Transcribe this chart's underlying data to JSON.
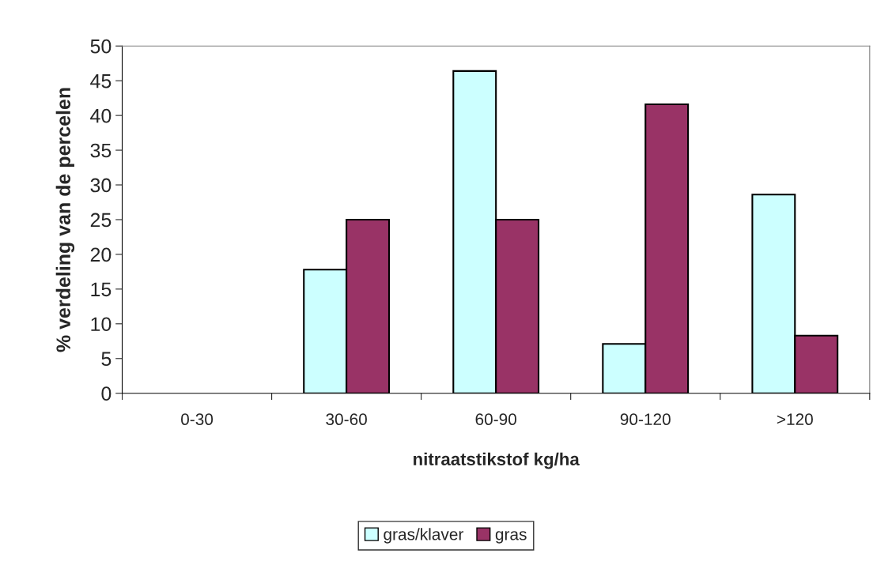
{
  "chart_data": {
    "type": "bar",
    "xlabel": "nitraatstikstof kg/ha",
    "ylabel": "% verdeling van de percelen",
    "categories": [
      "0-30",
      "30-60",
      "60-90",
      "90-120",
      ">120"
    ],
    "series": [
      {
        "name": "gras/klaver",
        "color": "#ccffff",
        "values": [
          0,
          17.8,
          46.4,
          7.1,
          28.6
        ]
      },
      {
        "name": "gras",
        "color": "#993366",
        "values": [
          0,
          25,
          25,
          41.6,
          8.3
        ]
      }
    ],
    "ylim": [
      0,
      50
    ],
    "yticks": [
      0,
      5,
      10,
      15,
      20,
      25,
      30,
      35,
      40,
      45,
      50
    ],
    "grid": false,
    "legend": "bottom"
  }
}
